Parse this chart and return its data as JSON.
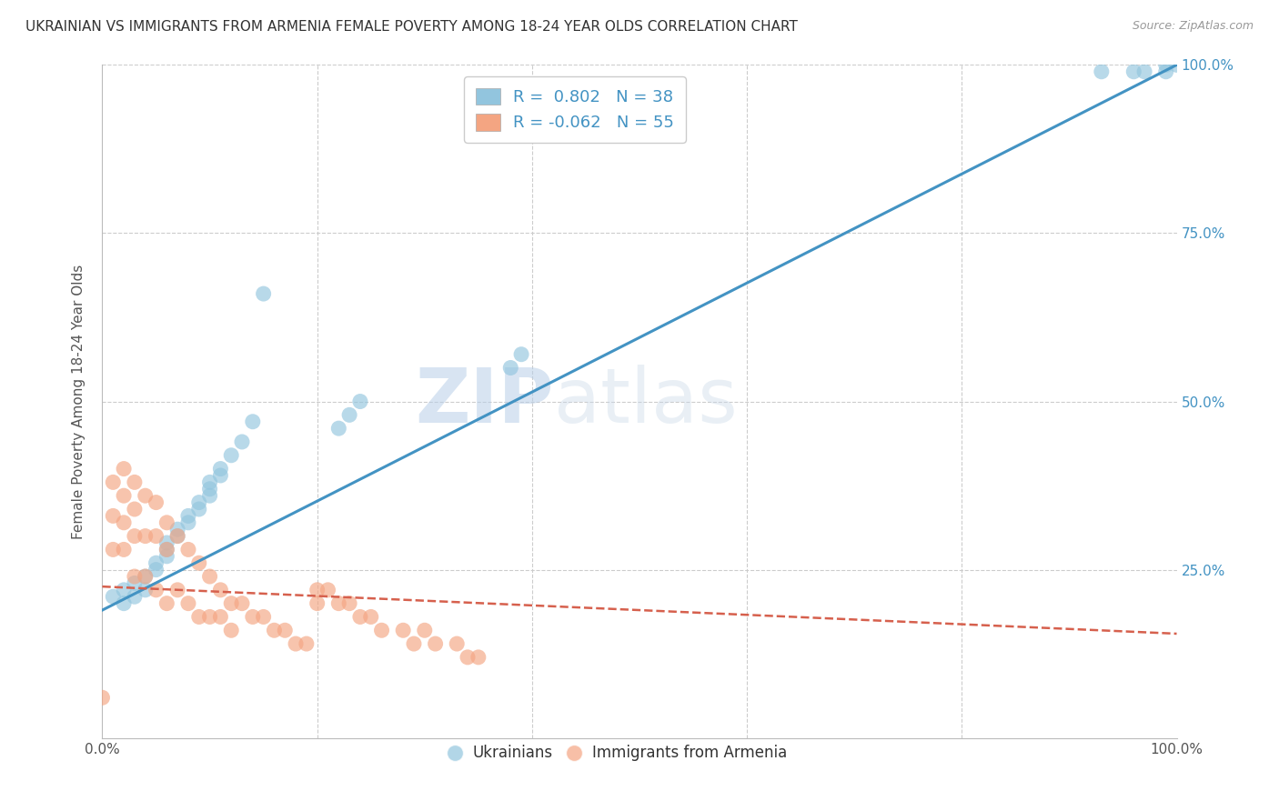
{
  "title": "UKRAINIAN VS IMMIGRANTS FROM ARMENIA FEMALE POVERTY AMONG 18-24 YEAR OLDS CORRELATION CHART",
  "source": "Source: ZipAtlas.com",
  "ylabel": "Female Poverty Among 18-24 Year Olds",
  "xlim": [
    0,
    1.0
  ],
  "ylim": [
    0,
    1.0
  ],
  "watermark_zip": "ZIP",
  "watermark_atlas": "atlas",
  "legend_r1": "R =  0.802",
  "legend_n1": "N = 38",
  "legend_r2": "R = -0.062",
  "legend_n2": "N = 55",
  "blue_color": "#92c5de",
  "blue_line_color": "#4393c3",
  "pink_color": "#f4a582",
  "pink_line_color": "#d6604d",
  "background_color": "#ffffff",
  "grid_color": "#cccccc",
  "title_color": "#333333",
  "right_axis_color": "#4393c3",
  "ukr_x": [
    0.01,
    0.02,
    0.02,
    0.03,
    0.03,
    0.04,
    0.04,
    0.05,
    0.05,
    0.06,
    0.06,
    0.06,
    0.07,
    0.07,
    0.08,
    0.08,
    0.09,
    0.09,
    0.1,
    0.1,
    0.1,
    0.11,
    0.11,
    0.12,
    0.13,
    0.14,
    0.15,
    0.22,
    0.23,
    0.24,
    0.38,
    0.39,
    0.93,
    0.96,
    0.97,
    0.99,
    0.99,
    1.0
  ],
  "ukr_y": [
    0.21,
    0.2,
    0.22,
    0.21,
    0.23,
    0.22,
    0.24,
    0.25,
    0.26,
    0.27,
    0.28,
    0.29,
    0.3,
    0.31,
    0.32,
    0.33,
    0.34,
    0.35,
    0.36,
    0.37,
    0.38,
    0.39,
    0.4,
    0.42,
    0.44,
    0.47,
    0.66,
    0.46,
    0.48,
    0.5,
    0.55,
    0.57,
    0.99,
    0.99,
    0.99,
    0.99,
    1.0,
    1.0
  ],
  "arm_x": [
    0.0,
    0.01,
    0.01,
    0.01,
    0.02,
    0.02,
    0.02,
    0.02,
    0.03,
    0.03,
    0.03,
    0.03,
    0.04,
    0.04,
    0.04,
    0.05,
    0.05,
    0.05,
    0.06,
    0.06,
    0.06,
    0.07,
    0.07,
    0.08,
    0.08,
    0.09,
    0.09,
    0.1,
    0.1,
    0.11,
    0.11,
    0.12,
    0.12,
    0.13,
    0.14,
    0.15,
    0.16,
    0.17,
    0.18,
    0.19,
    0.2,
    0.2,
    0.21,
    0.22,
    0.23,
    0.24,
    0.25,
    0.26,
    0.28,
    0.29,
    0.3,
    0.31,
    0.33,
    0.34,
    0.35
  ],
  "arm_y": [
    0.06,
    0.38,
    0.33,
    0.28,
    0.4,
    0.36,
    0.32,
    0.28,
    0.38,
    0.34,
    0.3,
    0.24,
    0.36,
    0.3,
    0.24,
    0.35,
    0.3,
    0.22,
    0.32,
    0.28,
    0.2,
    0.3,
    0.22,
    0.28,
    0.2,
    0.26,
    0.18,
    0.24,
    0.18,
    0.22,
    0.18,
    0.2,
    0.16,
    0.2,
    0.18,
    0.18,
    0.16,
    0.16,
    0.14,
    0.14,
    0.22,
    0.2,
    0.22,
    0.2,
    0.2,
    0.18,
    0.18,
    0.16,
    0.16,
    0.14,
    0.16,
    0.14,
    0.14,
    0.12,
    0.12
  ],
  "ukr_line_x0": 0.0,
  "ukr_line_y0": 0.19,
  "ukr_line_x1": 1.0,
  "ukr_line_y1": 1.0,
  "arm_line_x0": 0.0,
  "arm_line_y0": 0.225,
  "arm_line_x1": 1.0,
  "arm_line_y1": 0.155
}
